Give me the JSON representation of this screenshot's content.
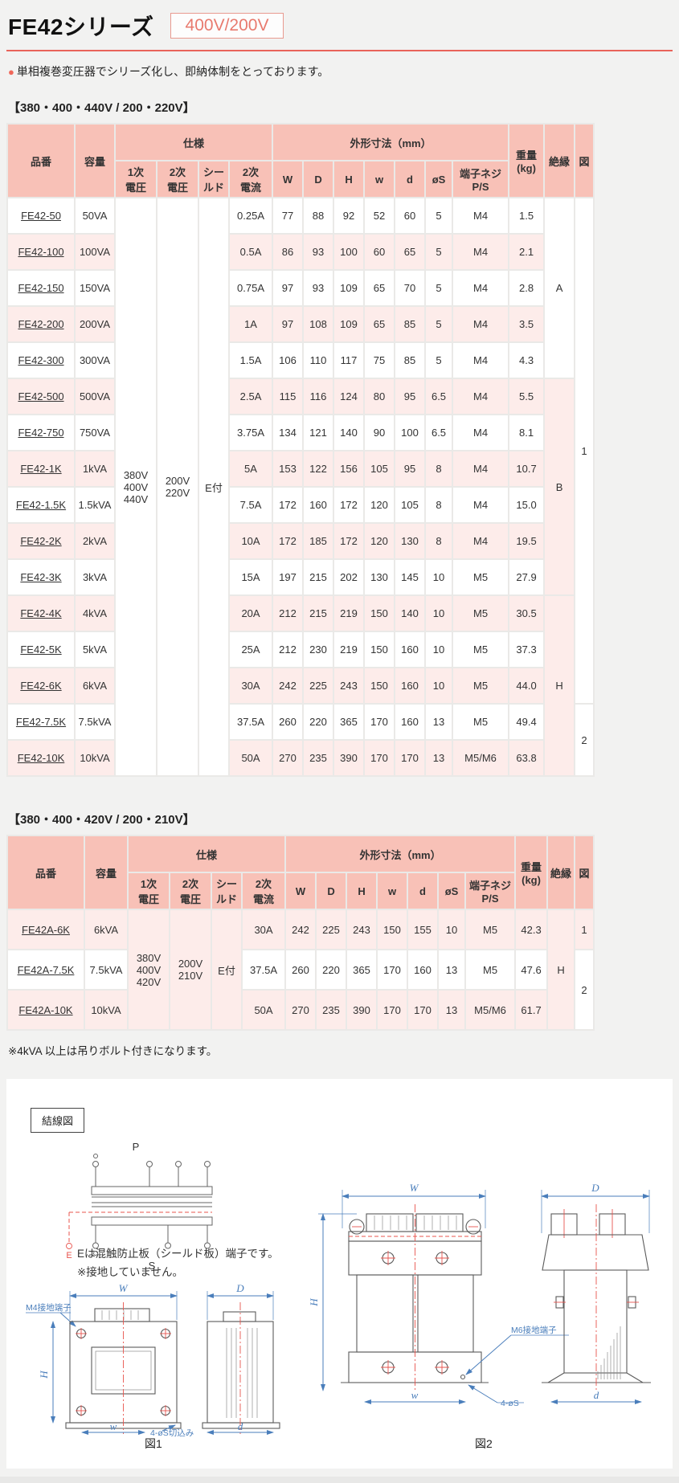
{
  "header": {
    "title": "FE42シリーズ",
    "badge": "400V/200V",
    "intro_bullet": "●",
    "intro": "単相複巻変圧器でシリーズ化し、即納体制をとっております。"
  },
  "columns": {
    "model": "品番",
    "capacity": "容量",
    "spec": "仕様",
    "primary": "1次\n電圧",
    "secondary": "2次\n電圧",
    "shield": "シー\nルド",
    "current": "2次\n電流",
    "dims": "外形寸法（mm）",
    "W": "W",
    "D": "D",
    "H": "H",
    "w": "w",
    "d": "d",
    "oS": "øS",
    "screw": "端子ネジ\nP/S",
    "weight": "重量\n(kg)",
    "insulation": "絶縁",
    "fig": "図"
  },
  "tables": [
    {
      "section_title": "【380・400・440V / 200・220V】",
      "primary": "380V\n400V\n440V",
      "secondary": "200V\n220V",
      "shield": "E付",
      "rows": [
        [
          "FE42-50",
          "50VA",
          "0.25A",
          "77",
          "88",
          "92",
          "52",
          "60",
          "5",
          "M4",
          "1.5"
        ],
        [
          "FE42-100",
          "100VA",
          "0.5A",
          "86",
          "93",
          "100",
          "60",
          "65",
          "5",
          "M4",
          "2.1"
        ],
        [
          "FE42-150",
          "150VA",
          "0.75A",
          "97",
          "93",
          "109",
          "65",
          "70",
          "5",
          "M4",
          "2.8"
        ],
        [
          "FE42-200",
          "200VA",
          "1A",
          "97",
          "108",
          "109",
          "65",
          "85",
          "5",
          "M4",
          "3.5"
        ],
        [
          "FE42-300",
          "300VA",
          "1.5A",
          "106",
          "110",
          "117",
          "75",
          "85",
          "5",
          "M4",
          "4.3"
        ],
        [
          "FE42-500",
          "500VA",
          "2.5A",
          "115",
          "116",
          "124",
          "80",
          "95",
          "6.5",
          "M4",
          "5.5"
        ],
        [
          "FE42-750",
          "750VA",
          "3.75A",
          "134",
          "121",
          "140",
          "90",
          "100",
          "6.5",
          "M4",
          "8.1"
        ],
        [
          "FE42-1K",
          "1kVA",
          "5A",
          "153",
          "122",
          "156",
          "105",
          "95",
          "8",
          "M4",
          "10.7"
        ],
        [
          "FE42-1.5K",
          "1.5kVA",
          "7.5A",
          "172",
          "160",
          "172",
          "120",
          "105",
          "8",
          "M4",
          "15.0"
        ],
        [
          "FE42-2K",
          "2kVA",
          "10A",
          "172",
          "185",
          "172",
          "120",
          "130",
          "8",
          "M4",
          "19.5"
        ],
        [
          "FE42-3K",
          "3kVA",
          "15A",
          "197",
          "215",
          "202",
          "130",
          "145",
          "10",
          "M5",
          "27.9"
        ],
        [
          "FE42-4K",
          "4kVA",
          "20A",
          "212",
          "215",
          "219",
          "150",
          "140",
          "10",
          "M5",
          "30.5"
        ],
        [
          "FE42-5K",
          "5kVA",
          "25A",
          "212",
          "230",
          "219",
          "150",
          "160",
          "10",
          "M5",
          "37.3"
        ],
        [
          "FE42-6K",
          "6kVA",
          "30A",
          "242",
          "225",
          "243",
          "150",
          "160",
          "10",
          "M5",
          "44.0"
        ],
        [
          "FE42-7.5K",
          "7.5kVA",
          "37.5A",
          "260",
          "220",
          "365",
          "170",
          "160",
          "13",
          "M5",
          "49.4"
        ],
        [
          "FE42-10K",
          "10kVA",
          "50A",
          "270",
          "235",
          "390",
          "170",
          "170",
          "13",
          "M5/M6",
          "63.8"
        ]
      ],
      "insulation_groups": [
        [
          "A",
          5
        ],
        [
          "B",
          6
        ],
        [
          "H",
          5
        ]
      ],
      "fig_groups": [
        [
          "1",
          14
        ],
        [
          "2",
          2
        ]
      ]
    },
    {
      "section_title": "【380・400・420V / 200・210V】",
      "primary": "380V\n400V\n420V",
      "secondary": "200V\n210V",
      "shield": "E付",
      "rows": [
        [
          "FE42A-6K",
          "6kVA",
          "30A",
          "242",
          "225",
          "243",
          "150",
          "155",
          "10",
          "M5",
          "42.3"
        ],
        [
          "FE42A-7.5K",
          "7.5kVA",
          "37.5A",
          "260",
          "220",
          "365",
          "170",
          "160",
          "13",
          "M5",
          "47.6"
        ],
        [
          "FE42A-10K",
          "10kVA",
          "50A",
          "270",
          "235",
          "390",
          "170",
          "170",
          "13",
          "M5/M6",
          "61.7"
        ]
      ],
      "insulation_groups": [
        [
          "H",
          3
        ]
      ],
      "fig_groups": [
        [
          "1",
          1
        ],
        [
          "2",
          2
        ]
      ]
    }
  ],
  "note": "※4kVA 以上は吊りボルト付きになります。",
  "diagrams": {
    "wiring_title": "結線図",
    "p": "P",
    "s": "S",
    "e": "E",
    "e_note": "Eは混触防止板（シールド板）端子です。\n※接地していません。",
    "fig1_caption": "図1",
    "fig2_caption": "図2",
    "m4_label": "M4接地端子",
    "m6_label": "M6接地端子",
    "slot_label": "4-øS切込み",
    "holes_label": "4-øS",
    "dim_w_upper": "W",
    "dim_d_upper": "D",
    "dim_h": "H",
    "dim_w_lower": "w",
    "dim_d_lower": "d"
  },
  "colors": {
    "accent": "#e9635a",
    "table_header_bg": "#f8c1b7",
    "row_alt_bg": "#fdecea",
    "dimension_blue": "#4a7ebb",
    "centerline_red": "#e8544e"
  }
}
